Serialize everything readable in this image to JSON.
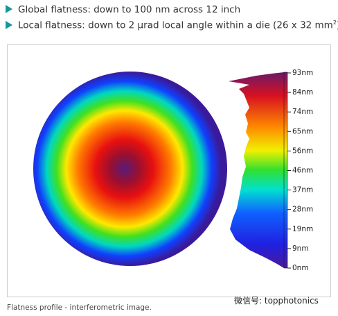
{
  "bullets": [
    {
      "text": "Global flatness: down to 100 nm across 12 inch"
    },
    {
      "text": "Local flatness: down to 2 µrad local angle within a die (26 x 32 mm",
      "sup": "2",
      "tail": ")"
    }
  ],
  "figure": {
    "scale_labels": [
      "93nm",
      "84nm",
      "74nm",
      "65nm",
      "56nm",
      "46nm",
      "37nm",
      "28nm",
      "19nm",
      "9nm",
      "0nm"
    ],
    "caption": "Flatness profile - interferometric image."
  },
  "watermark": "微信号: topphotonics"
}
